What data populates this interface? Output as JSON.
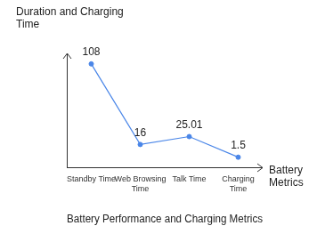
{
  "chart_data": {
    "type": "line",
    "title": "Battery Performance and Charging Metrics",
    "y_label": "Duration and Charging Time",
    "x_label": "Battery Metrics",
    "categories": [
      "Standby Time",
      "Web Browsing Time",
      "Talk Time",
      "Charging Time"
    ],
    "values": [
      108,
      16,
      25.01,
      1.5
    ],
    "color": "#4a86e8",
    "marker": "circle",
    "ylim": [
      -10,
      120
    ],
    "grid": false,
    "data_labels": true,
    "tick_labels": "x"
  }
}
